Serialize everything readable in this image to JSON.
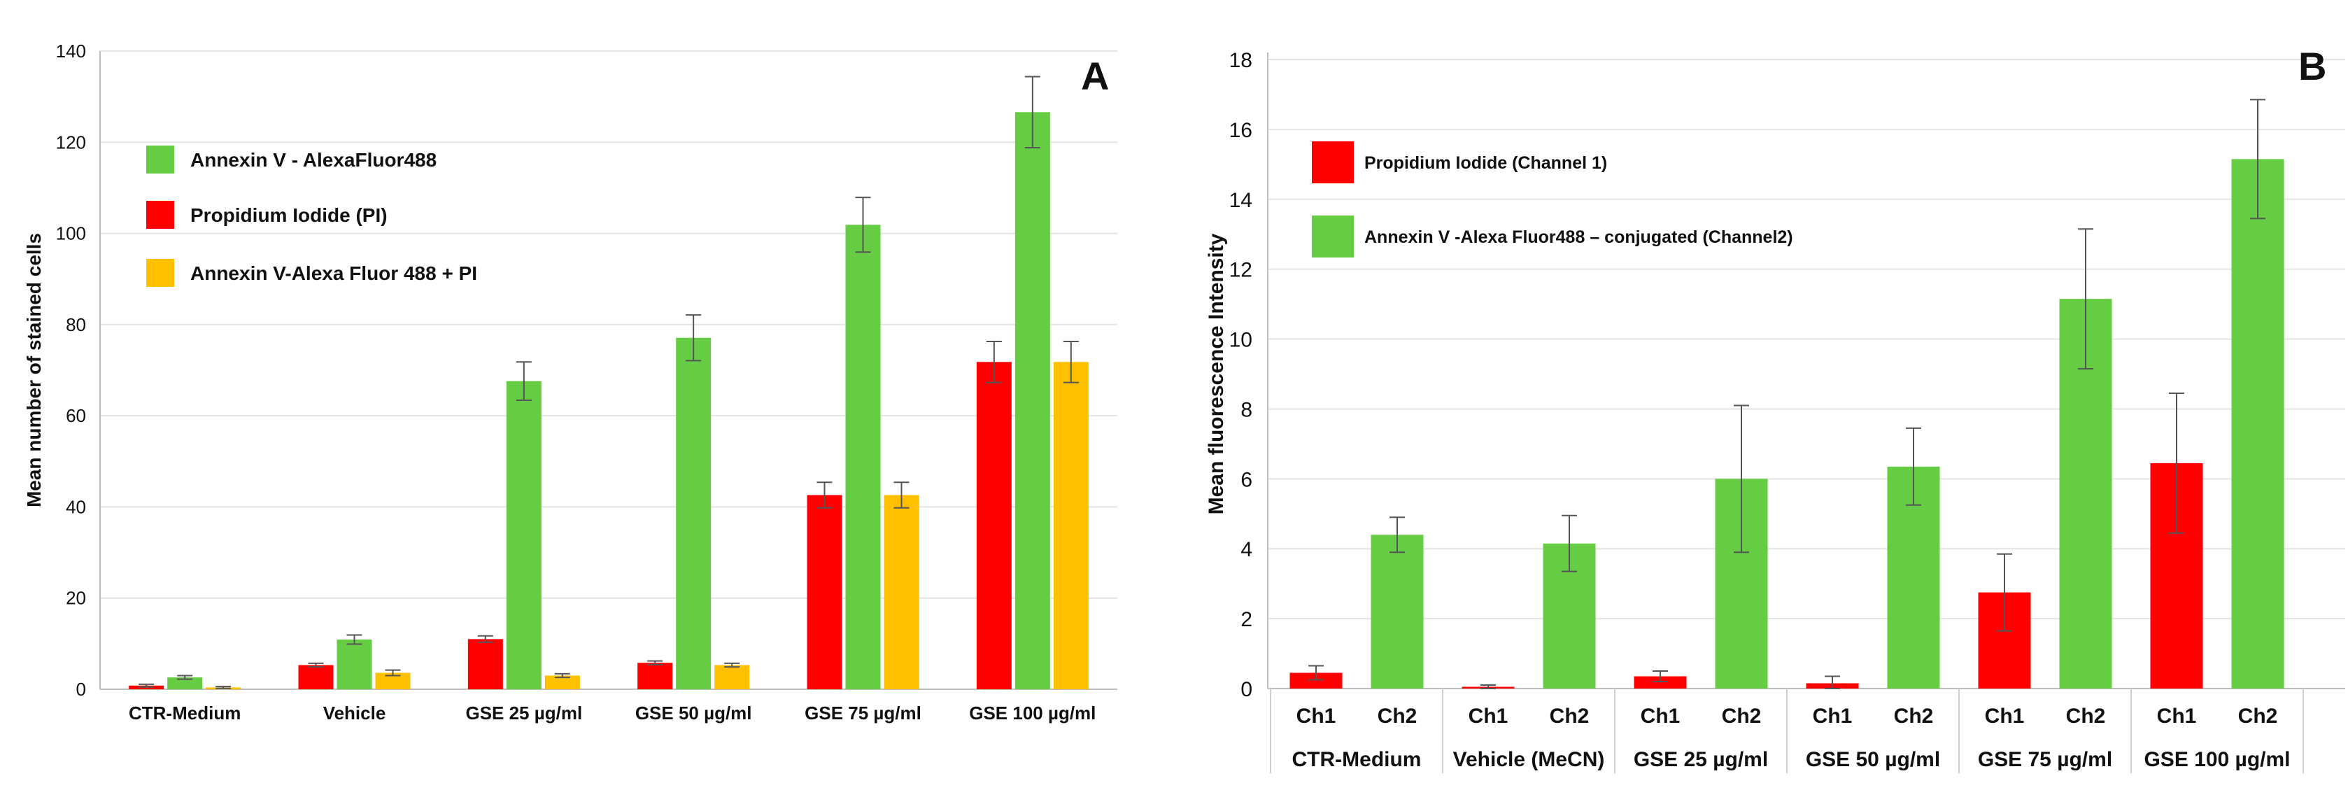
{
  "chart_data": [
    {
      "panel": "A",
      "type": "bar",
      "title": "",
      "panel_label": "A",
      "ylabel": "Mean number of stained cells",
      "xlabel": "",
      "ylim": [
        0,
        140
      ],
      "yticks": [
        0,
        20,
        40,
        60,
        80,
        100,
        120,
        140
      ],
      "grid": true,
      "legend_position": "top-left",
      "categories": [
        "CTR-Medium",
        "Vehicle",
        "GSE 25 µg/ml",
        "GSE 50 µg/ml",
        "GSE 75 µg/ml",
        "GSE 100 µg/ml"
      ],
      "series": [
        {
          "name": "Propidium Iodide  (PI)",
          "color": "#ff0000",
          "values": [
            0.8,
            5.3,
            11,
            5.8,
            42.6,
            71.8
          ],
          "errors": [
            0.3,
            0.4,
            0.7,
            0.4,
            2.8,
            4.5
          ]
        },
        {
          "name": "Annexin V - AlexaFluor488",
          "color": "#66cc44",
          "values": [
            2.6,
            10.9,
            67.6,
            77.1,
            101.9,
            126.6
          ],
          "errors": [
            0.4,
            1,
            4.2,
            5,
            6,
            7.8
          ]
        },
        {
          "name": "Annexin V-Alexa Fluor 488 + PI",
          "color": "#ffc000",
          "values": [
            0.4,
            3.6,
            3,
            5.3,
            42.6,
            71.8
          ],
          "errors": [
            0.2,
            0.6,
            0.4,
            0.4,
            2.8,
            4.5
          ]
        }
      ],
      "legend_order": [
        "Annexin V - AlexaFluor488",
        "Propidium Iodide  (PI)",
        "Annexin V-Alexa Fluor 488 + PI"
      ]
    },
    {
      "panel": "B",
      "type": "bar",
      "title": "",
      "panel_label": "B",
      "ylabel": "Mean  fluorescence Intensity",
      "xlabel": "",
      "ylim": [
        0,
        18
      ],
      "yticks": [
        0,
        2,
        4,
        6,
        8,
        10,
        12,
        14,
        16,
        18
      ],
      "grid": true,
      "legend_position": "top-left",
      "categories": [
        "CTR-Medium",
        "Vehicle (MeCN)",
        "GSE 25 µg/ml",
        "GSE 50 µg/ml",
        "GSE 75 µg/ml",
        "GSE 100 µg/ml"
      ],
      "sub_labels": [
        "Ch1",
        "Ch2"
      ],
      "series": [
        {
          "name": "Propidium Iodide (Channel 1)",
          "color": "#ff0000",
          "values": [
            0.45,
            0.05,
            0.35,
            0.15,
            2.75,
            6.45
          ],
          "errors": [
            0.2,
            0.05,
            0.15,
            0.2,
            1.1,
            2
          ]
        },
        {
          "name": "Annexin V -Alexa Fluor488 – conjugated (Channel2)",
          "color": "#66cc44",
          "values": [
            4.4,
            4.15,
            6,
            6.35,
            11.15,
            15.15
          ],
          "errors": [
            0.5,
            0.8,
            2.1,
            1.1,
            2,
            1.7
          ]
        }
      ]
    }
  ]
}
